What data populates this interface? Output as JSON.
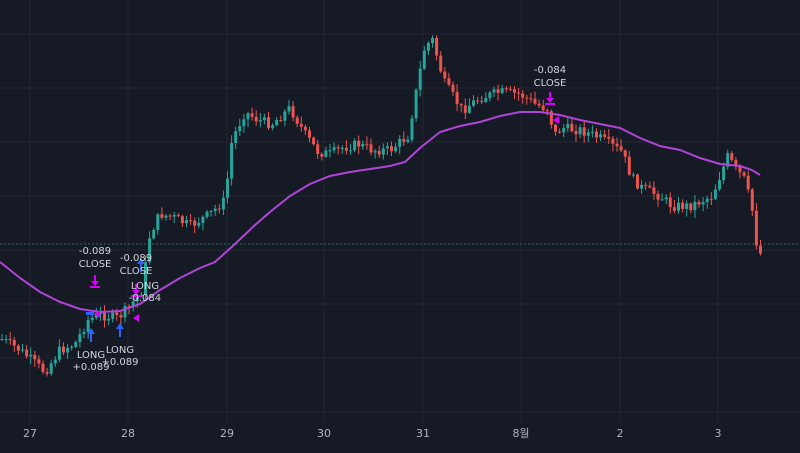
{
  "chart_data": {
    "type": "candlestick",
    "x_tick_labels": [
      "27",
      "28",
      "29",
      "30",
      "31",
      "8월",
      "2",
      "3"
    ],
    "price_line": true,
    "grid": true,
    "legend": "none",
    "colors": {
      "background": "#161a25",
      "grid": "#232734",
      "up": "#26a69a",
      "down": "#ef5350",
      "moving_average": "#b044d8",
      "long_marker": "#2962ff",
      "close_marker": "#d500f9",
      "price_line": "#1f6f69"
    },
    "trade_annotations": [
      {
        "kind": "long",
        "line1": "LONG",
        "line2": "+0.089"
      },
      {
        "kind": "long",
        "line1": "LONG",
        "line2": "+0.089"
      },
      {
        "kind": "close",
        "line1": "-0.089",
        "line2": "CLOSE"
      },
      {
        "kind": "close",
        "line1": "-0.089",
        "line2": "CLOSE"
      },
      {
        "kind": "long",
        "line1": "LONG",
        "line2": "-0.084"
      },
      {
        "kind": "close",
        "line1": "-0.084",
        "line2": "CLOSE"
      }
    ]
  }
}
